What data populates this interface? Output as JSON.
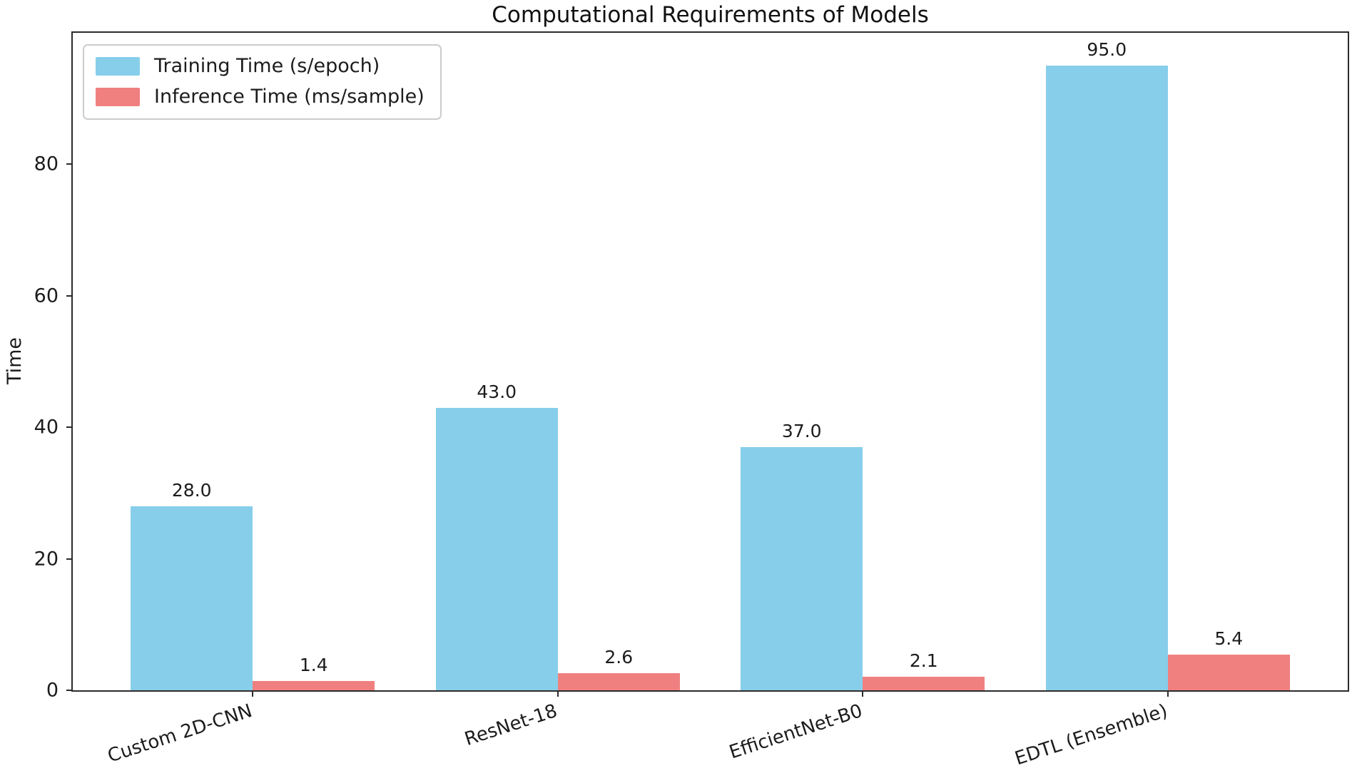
{
  "chart_data": {
    "type": "bar",
    "title": "Computational Requirements of Models",
    "ylabel": "Time",
    "xlabel": "",
    "categories": [
      "Custom 2D-CNN",
      "ResNet-18",
      "EfficientNet-B0",
      "EDTL (Ensemble)"
    ],
    "series": [
      {
        "name": "Training Time (s/epoch)",
        "color": "#87CEEB",
        "values": [
          28.0,
          43.0,
          37.0,
          95.0
        ],
        "bar_labels": [
          "28.0",
          "43.0",
          "37.0",
          "95.0"
        ]
      },
      {
        "name": "Inference Time (ms/sample)",
        "color": "#F08080",
        "values": [
          1.4,
          2.6,
          2.1,
          5.4
        ],
        "bar_labels": [
          "1.4",
          "2.6",
          "2.1",
          "5.4"
        ]
      }
    ],
    "ylim": [
      0,
      100
    ],
    "yticks": [
      0,
      20,
      40,
      60,
      80
    ],
    "grid": false,
    "legend_position": "upper left",
    "bar_width_units": 0.4,
    "x_positions": [
      0,
      1,
      2,
      3
    ],
    "xlim": [
      -0.59,
      3.59
    ]
  }
}
